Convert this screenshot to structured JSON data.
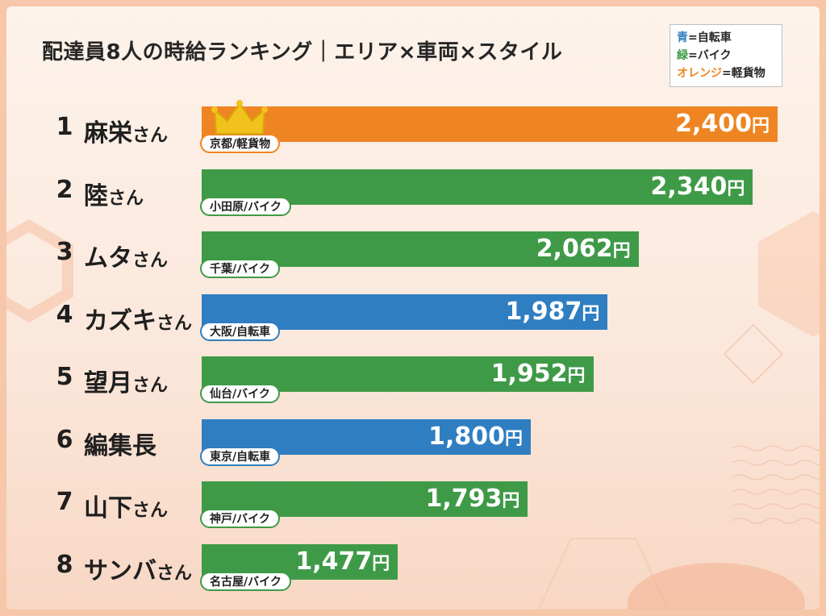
{
  "title": "配達員8人の時給ランキング｜エリア×車両×スタイル",
  "legend": {
    "items": [
      {
        "key": "青",
        "eq": "=",
        "label": "自転車",
        "color": "#2f7ec1"
      },
      {
        "key": "緑",
        "eq": "=",
        "label": "バイク",
        "color": "#3f9a48"
      },
      {
        "key": "オレンジ",
        "eq": "=",
        "label": "軽貨物",
        "color": "#ee8522"
      }
    ]
  },
  "colors": {
    "bike": "#2f7ec1",
    "moto": "#3f9a48",
    "van": "#ee8522"
  },
  "chart_data": {
    "type": "bar",
    "orientation": "horizontal",
    "title": "配達員8人の時給ランキング｜エリア×車両×スタイル",
    "unit": "円",
    "xlim": [
      1000,
      2400
    ],
    "grid": false,
    "legend_position": "top-right",
    "bars": [
      {
        "rank": "1",
        "name": "麻栄",
        "suffix": "さん",
        "value": 2400,
        "value_label": "2,400",
        "unit": "円",
        "tag": "京都/軽貨物",
        "vehicle": "van",
        "crown": true
      },
      {
        "rank": "2",
        "name": "陸",
        "suffix": "さん",
        "value": 2340,
        "value_label": "2,340",
        "unit": "円",
        "tag": "小田原/バイク",
        "vehicle": "moto"
      },
      {
        "rank": "3",
        "name": "ムタ",
        "suffix": "さん",
        "value": 2062,
        "value_label": "2,062",
        "unit": "円",
        "tag": "千葉/バイク",
        "vehicle": "moto"
      },
      {
        "rank": "4",
        "name": "カズキ",
        "suffix": "さん",
        "value": 1987,
        "value_label": "1,987",
        "unit": "円",
        "tag": "大阪/自転車",
        "vehicle": "bike"
      },
      {
        "rank": "5",
        "name": "望月",
        "suffix": "さん",
        "value": 1952,
        "value_label": "1,952",
        "unit": "円",
        "tag": "仙台/バイク",
        "vehicle": "moto"
      },
      {
        "rank": "6",
        "name": "編集長",
        "suffix": "",
        "value": 1800,
        "value_label": "1,800",
        "unit": "円",
        "tag": "東京/自転車",
        "vehicle": "bike"
      },
      {
        "rank": "7",
        "name": "山下",
        "suffix": "さん",
        "value": 1793,
        "value_label": "1,793",
        "unit": "円",
        "tag": "神戸/バイク",
        "vehicle": "moto"
      },
      {
        "rank": "8",
        "name": "サンバ",
        "suffix": "さん",
        "value": 1477,
        "value_label": "1,477",
        "unit": "円",
        "tag": "名古屋/バイク",
        "vehicle": "moto"
      }
    ]
  }
}
